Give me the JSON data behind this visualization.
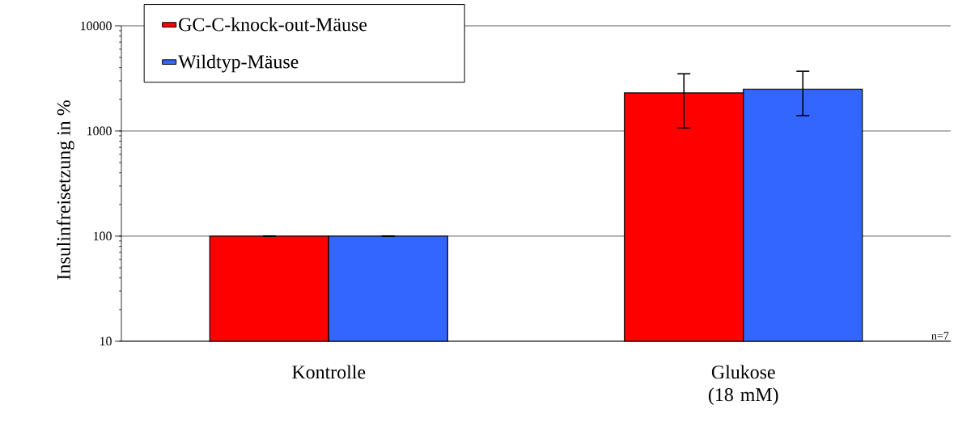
{
  "chart_data": {
    "type": "bar",
    "ylabel": "Insulinfreisetzung in %",
    "categories": [
      "Kontrolle",
      "Glukose (18 mM)"
    ],
    "series": [
      {
        "name": "GC-C-knock-out-Mäuse",
        "color": "#ff0000",
        "values": [
          100,
          2300
        ],
        "errors": [
          0,
          [
            1070,
            3500
          ]
        ]
      },
      {
        "name": "Wildtyp-Mäuse",
        "color": "#3366ff",
        "values": [
          100,
          2500
        ],
        "errors": [
          0,
          [
            1400,
            3700
          ]
        ]
      }
    ],
    "log": "y",
    "ylim": [
      10,
      10000
    ],
    "yticks": [
      10,
      100,
      1000,
      10000
    ],
    "grid": "y",
    "legend": "top left",
    "annotations": [
      "n=7"
    ]
  }
}
